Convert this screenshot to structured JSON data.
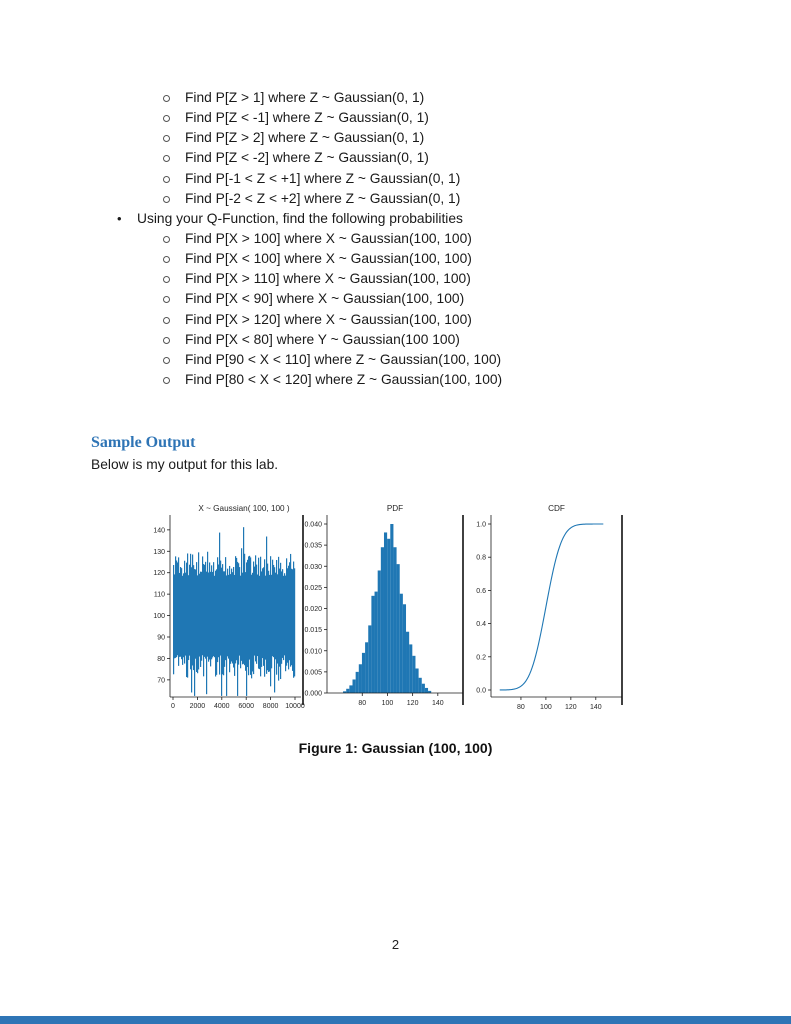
{
  "document": {
    "list": {
      "items_z": [
        "Find P[Z > 1] where Z ~ Gaussian(0, 1)",
        "Find P[Z < -1] where Z ~ Gaussian(0, 1)",
        "Find P[Z > 2] where Z ~ Gaussian(0, 1)",
        "Find P[Z < -2] where Z ~ Gaussian(0, 1)",
        "Find P[-1 < Z < +1] where Z ~ Gaussian(0, 1)",
        "Find P[-2 < Z < +2] where Z ~ Gaussian(0, 1)"
      ],
      "q_function_bullet": "Using your Q-Function, find the following probabilities",
      "items_x": [
        "Find P[X > 100] where X ~ Gaussian(100, 100)",
        "Find P[X < 100] where X ~ Gaussian(100, 100)",
        "Find P[X > 110] where X ~ Gaussian(100, 100)",
        "Find P[X < 90] where X ~ Gaussian(100, 100)",
        "Find P[X > 120] where X ~ Gaussian(100, 100)",
        "Find P[X < 80] where Y ~ Gaussian(100 100)",
        "Find P[90 < X < 110] where Z ~ Gaussian(100, 100)",
        "Find P[80 < X < 120] where Z ~ Gaussian(100, 100)"
      ]
    },
    "sample_output": {
      "heading": "Sample Output",
      "intro": "Below is my output for this lab."
    },
    "figure_caption": "Figure 1: Gaussian (100, 100)",
    "page_number": "2"
  },
  "colors": {
    "plot_blue": "#1f77b4",
    "heading_blue": "#2E74B5",
    "footer_bar_blue": "#2E75B6",
    "axis_dark": "#1a1a1a",
    "tick_text": "#262626"
  },
  "chart_data": [
    {
      "type": "line",
      "subtype": "noise-samples",
      "title": "X ~ Gaussian( 100, 100 )",
      "xlabel": "",
      "ylabel": "",
      "xlim": [
        0,
        10000
      ],
      "ylim": [
        62,
        146
      ],
      "xticks": [
        0,
        2000,
        4000,
        6000,
        8000,
        10000
      ],
      "yticks": [
        70,
        80,
        90,
        100,
        110,
        120,
        130,
        140
      ],
      "n_samples": 10000,
      "mean": 100,
      "std": 10
    },
    {
      "type": "bar",
      "subtype": "histogram",
      "title": "PDF",
      "xlabel": "",
      "ylabel": "",
      "xlim": [
        52,
        160
      ],
      "ylim": [
        0,
        0.042
      ],
      "xticks": [
        80,
        100,
        120,
        140
      ],
      "yticks": [
        "0.000",
        "0.005",
        "0.010",
        "0.015",
        "0.020",
        "0.025",
        "0.030",
        "0.035",
        "0.040"
      ],
      "bin_width": 2.5,
      "bin_centers": [
        66,
        68.5,
        71,
        73.5,
        76,
        78.5,
        81,
        83.5,
        86,
        88.5,
        91,
        93.5,
        96,
        98.5,
        101,
        103.5,
        106,
        108.5,
        111,
        113.5,
        116,
        118.5,
        121,
        123.5,
        126,
        128.5,
        131,
        133.5
      ],
      "heights": [
        0.0004,
        0.001,
        0.0018,
        0.0032,
        0.005,
        0.0068,
        0.0095,
        0.012,
        0.016,
        0.023,
        0.024,
        0.029,
        0.0345,
        0.038,
        0.0365,
        0.04,
        0.0345,
        0.0305,
        0.0235,
        0.021,
        0.0145,
        0.0115,
        0.0088,
        0.0058,
        0.0036,
        0.0022,
        0.0012,
        0.0005
      ]
    },
    {
      "type": "line",
      "subtype": "normal-cdf",
      "title": "CDF",
      "xlabel": "",
      "ylabel": "",
      "xlim": [
        56,
        161
      ],
      "ylim": [
        0,
        1
      ],
      "xticks": [
        80,
        100,
        120,
        140
      ],
      "yticks": [
        "0.0",
        "0.2",
        "0.4",
        "0.6",
        "0.8",
        "1.0"
      ],
      "mean": 100,
      "std": 10,
      "x_range": [
        63,
        146
      ]
    }
  ]
}
